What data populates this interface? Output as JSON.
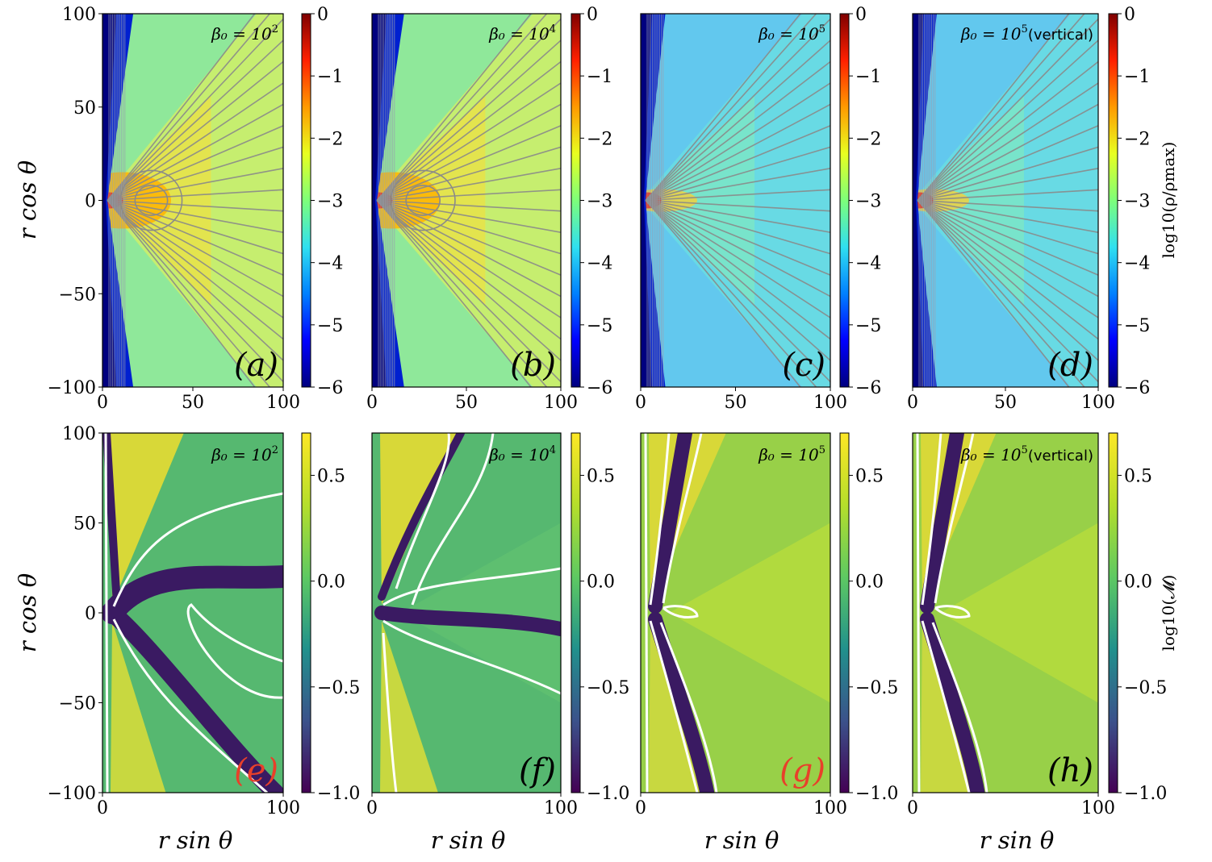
{
  "figure": {
    "y_axis_label": "r cos θ",
    "x_axis_label": "r sin θ"
  },
  "colorbars": {
    "density": {
      "label": "log10(ρ/ρmax)",
      "range": [
        -6,
        0
      ],
      "ticks": [
        "0",
        "−1",
        "−2",
        "−3",
        "−4",
        "−5",
        "−6"
      ],
      "colormap": "jet",
      "colors": [
        "#00007f",
        "#0000ff",
        "#0080ff",
        "#30e0f0",
        "#7dff7a",
        "#e8ff20",
        "#ff9a00",
        "#ff2000",
        "#7f0000"
      ]
    },
    "mach": {
      "label": "log10(𝓜)",
      "range": [
        -1.0,
        0.7
      ],
      "ticks": [
        "0.5",
        "0.0",
        "−0.5",
        "−1.0"
      ],
      "colormap": "viridis",
      "colors": [
        "#440154",
        "#3b528b",
        "#21918c",
        "#5ec962",
        "#b5de2b",
        "#fde725"
      ]
    }
  },
  "chart_data": [
    {
      "panel": "a",
      "label": "(a)",
      "label_color": "#000000",
      "type": "heatmap",
      "quantity": "log10(ρ/ρmax)",
      "beta0": "β0 = 10^2",
      "beta_exp": "2",
      "title_suffix": "",
      "xlim": [
        0,
        100
      ],
      "ylim": [
        -100,
        100
      ],
      "xticks": [
        "0",
        "50",
        "100"
      ],
      "yticks": [
        "100",
        "50",
        "0",
        "−50",
        "−100"
      ],
      "streamlines": true
    },
    {
      "panel": "b",
      "label": "(b)",
      "label_color": "#000000",
      "type": "heatmap",
      "quantity": "log10(ρ/ρmax)",
      "beta0": "β0 = 10^4",
      "beta_exp": "4",
      "title_suffix": "",
      "xlim": [
        0,
        100
      ],
      "ylim": [
        -100,
        100
      ],
      "xticks": [
        "0",
        "50",
        "100"
      ],
      "streamlines": true
    },
    {
      "panel": "c",
      "label": "(c)",
      "label_color": "#000000",
      "type": "heatmap",
      "quantity": "log10(ρ/ρmax)",
      "beta0": "β0 = 10^5",
      "beta_exp": "5",
      "title_suffix": "",
      "xlim": [
        0,
        100
      ],
      "ylim": [
        -100,
        100
      ],
      "xticks": [
        "0",
        "50",
        "100"
      ],
      "streamlines": true
    },
    {
      "panel": "d",
      "label": "(d)",
      "label_color": "#000000",
      "type": "heatmap",
      "quantity": "log10(ρ/ρmax)",
      "beta0": "β0 = 10^5 (vertical)",
      "beta_exp": "5",
      "title_suffix": "(vertical)",
      "xlim": [
        0,
        100
      ],
      "ylim": [
        -100,
        100
      ],
      "xticks": [
        "0",
        "50",
        "100"
      ],
      "streamlines": true
    },
    {
      "panel": "e",
      "label": "(e)",
      "label_color": "#e8402a",
      "type": "heatmap",
      "quantity": "log10(𝓜)",
      "beta0": "β0 = 10^2",
      "beta_exp": "2",
      "title_suffix": "",
      "xlim": [
        0,
        100
      ],
      "ylim": [
        -100,
        100
      ],
      "xticks": [
        "0",
        "100"
      ],
      "yticks": [
        "100",
        "50",
        "0",
        "−50",
        "−100"
      ],
      "contour": "𝓜 = 1"
    },
    {
      "panel": "f",
      "label": "(f)",
      "label_color": "#000000",
      "type": "heatmap",
      "quantity": "log10(𝓜)",
      "beta0": "β0 = 10^4",
      "beta_exp": "4",
      "title_suffix": "",
      "xlim": [
        0,
        100
      ],
      "ylim": [
        -100,
        100
      ],
      "xticks": [
        "0",
        "100"
      ],
      "contour": "𝓜 = 1"
    },
    {
      "panel": "g",
      "label": "(g)",
      "label_color": "#e8402a",
      "type": "heatmap",
      "quantity": "log10(𝓜)",
      "beta0": "β0 = 10^5",
      "beta_exp": "5",
      "title_suffix": "",
      "xlim": [
        0,
        100
      ],
      "ylim": [
        -100,
        100
      ],
      "xticks": [
        "0",
        "100"
      ],
      "contour": "𝓜 = 1"
    },
    {
      "panel": "h",
      "label": "(h)",
      "label_color": "#000000",
      "type": "heatmap",
      "quantity": "log10(𝓜)",
      "beta0": "β0 = 10^5 (vertical)",
      "beta_exp": "5",
      "title_suffix": "(vertical)",
      "xlim": [
        0,
        100
      ],
      "ylim": [
        -100,
        100
      ],
      "xticks": [
        "0",
        "100"
      ],
      "contour": "𝓜 = 1"
    }
  ]
}
